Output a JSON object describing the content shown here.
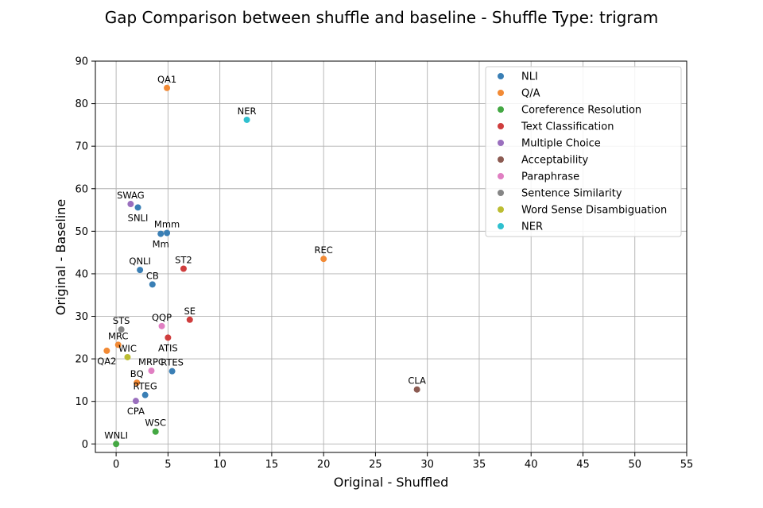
{
  "chart_data": {
    "type": "scatter",
    "title": "Gap Comparison between shuffle and baseline - Shuffle Type: trigram",
    "xlabel": "Original - Shuffled",
    "ylabel": "Original - Baseline",
    "xlim": [
      -2,
      55
    ],
    "ylim": [
      -2,
      90
    ],
    "xticks": [
      0,
      5,
      10,
      15,
      20,
      25,
      30,
      35,
      40,
      45,
      50,
      55
    ],
    "yticks": [
      0,
      10,
      20,
      30,
      40,
      50,
      60,
      70,
      80,
      90
    ],
    "grid": true,
    "legend_position": "top-right",
    "categories": [
      {
        "name": "NLI",
        "color": "#3a7fb5"
      },
      {
        "name": "Q/A",
        "color": "#f28a35"
      },
      {
        "name": "Coreference Resolution",
        "color": "#44a843"
      },
      {
        "name": "Text Classification",
        "color": "#cf3d3d"
      },
      {
        "name": "Multiple Choice",
        "color": "#9a6fbe"
      },
      {
        "name": "Acceptability",
        "color": "#8c5b52"
      },
      {
        "name": "Paraphrase",
        "color": "#e07fc2"
      },
      {
        "name": "Sentence Similarity",
        "color": "#858585"
      },
      {
        "name": "Word Sense Disambiguation",
        "color": "#bcbd32"
      },
      {
        "name": "NER",
        "color": "#2fc0cf"
      }
    ],
    "points": [
      {
        "label": "QA1",
        "x": 4.9,
        "y": 83.7,
        "category": "Q/A",
        "pos": "above"
      },
      {
        "label": "NER",
        "x": 12.6,
        "y": 76.2,
        "category": "NER",
        "pos": "above"
      },
      {
        "label": "SWAG",
        "x": 1.4,
        "y": 56.4,
        "category": "Multiple Choice",
        "pos": "above"
      },
      {
        "label": "SNLI",
        "x": 2.1,
        "y": 55.6,
        "category": "NLI",
        "pos": "below"
      },
      {
        "label": "Mmm",
        "x": 4.9,
        "y": 49.6,
        "category": "NLI",
        "pos": "above"
      },
      {
        "label": "Mm",
        "x": 4.3,
        "y": 49.4,
        "category": "NLI",
        "pos": "below"
      },
      {
        "label": "REC",
        "x": 20.0,
        "y": 43.5,
        "category": "Q/A",
        "pos": "above"
      },
      {
        "label": "ST2",
        "x": 6.5,
        "y": 41.2,
        "category": "Text Classification",
        "pos": "above"
      },
      {
        "label": "QNLI",
        "x": 2.3,
        "y": 40.9,
        "category": "NLI",
        "pos": "above"
      },
      {
        "label": "CB",
        "x": 3.5,
        "y": 37.5,
        "category": "NLI",
        "pos": "above"
      },
      {
        "label": "SE",
        "x": 7.1,
        "y": 29.2,
        "category": "Text Classification",
        "pos": "above"
      },
      {
        "label": "QQP",
        "x": 4.4,
        "y": 27.7,
        "category": "Paraphrase",
        "pos": "above"
      },
      {
        "label": "STS",
        "x": 0.5,
        "y": 26.9,
        "category": "Sentence Similarity",
        "pos": "above"
      },
      {
        "label": "ATIS",
        "x": 5.0,
        "y": 25.0,
        "category": "Text Classification",
        "pos": "below"
      },
      {
        "label": "MRC",
        "x": 0.2,
        "y": 23.3,
        "category": "Q/A",
        "pos": "above"
      },
      {
        "label": "QA2",
        "x": -0.9,
        "y": 21.9,
        "category": "Q/A",
        "pos": "below"
      },
      {
        "label": "WIC",
        "x": 1.1,
        "y": 20.4,
        "category": "Word Sense Disambiguation",
        "pos": "above"
      },
      {
        "label": "MRPC",
        "x": 3.4,
        "y": 17.2,
        "category": "Paraphrase",
        "pos": "above"
      },
      {
        "label": "RTES",
        "x": 5.4,
        "y": 17.1,
        "category": "NLI",
        "pos": "above"
      },
      {
        "label": "BQ",
        "x": 2.0,
        "y": 14.4,
        "category": "Q/A",
        "pos": "above"
      },
      {
        "label": "CLA",
        "x": 29.0,
        "y": 12.8,
        "category": "Acceptability",
        "pos": "above"
      },
      {
        "label": "RTEG",
        "x": 2.8,
        "y": 11.5,
        "category": "NLI",
        "pos": "above"
      },
      {
        "label": "CPA",
        "x": 1.9,
        "y": 10.1,
        "category": "Multiple Choice",
        "pos": "below"
      },
      {
        "label": "WSC",
        "x": 3.8,
        "y": 2.9,
        "category": "Coreference Resolution",
        "pos": "above"
      },
      {
        "label": "WNLI",
        "x": 0.0,
        "y": 0.0,
        "category": "Coreference Resolution",
        "pos": "above"
      }
    ]
  }
}
